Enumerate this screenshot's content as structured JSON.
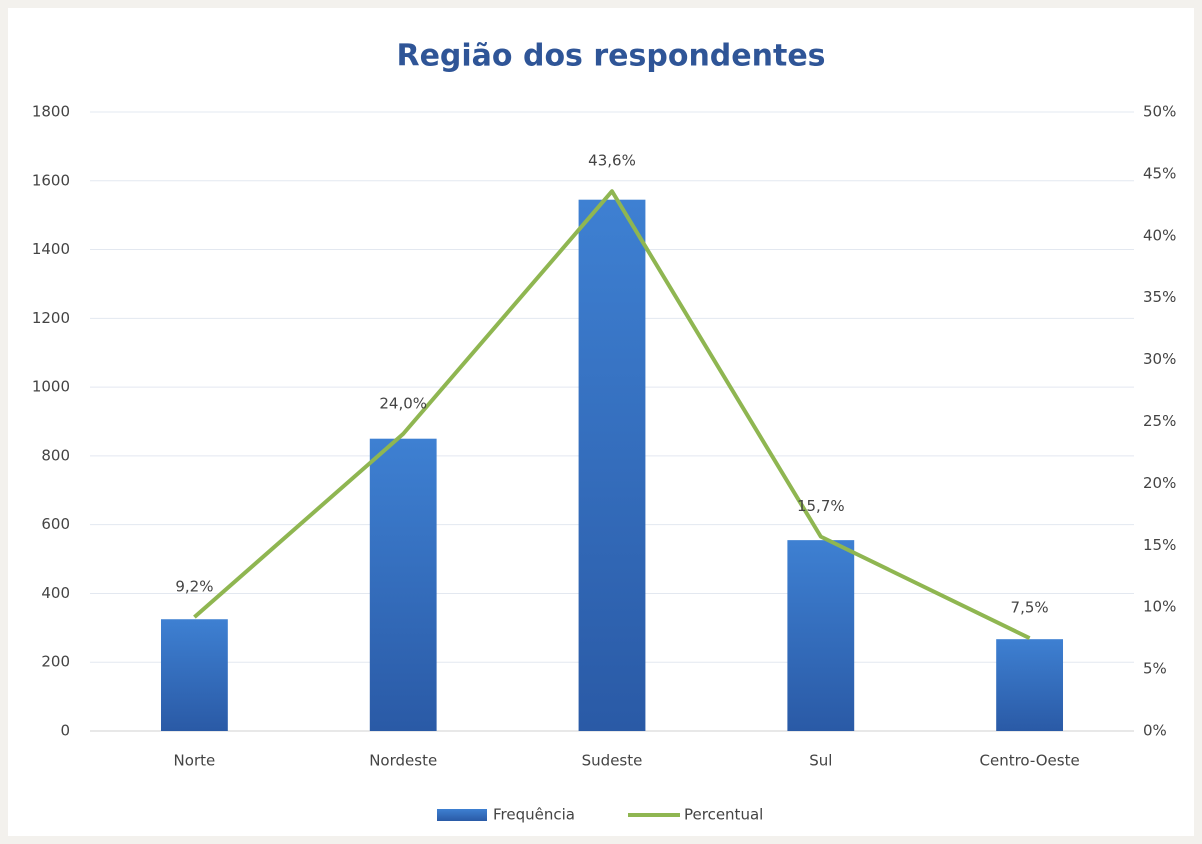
{
  "chart_data": {
    "type": "bar",
    "title": "Região dos respondentes",
    "categories": [
      "Norte",
      "Nordeste",
      "Sudeste",
      "Sul",
      "Centro-Oeste"
    ],
    "series": [
      {
        "name": "Frequência",
        "type": "bar",
        "color": "#3572c6",
        "values": [
          325,
          850,
          1545,
          555,
          267
        ]
      },
      {
        "name": "Percentual",
        "type": "line",
        "axis": "y2",
        "color": "#8fb651",
        "values": [
          9.2,
          24.0,
          43.6,
          15.7,
          7.5
        ],
        "value_labels": [
          "9,2%",
          "24,0%",
          "43,6%",
          "15,7%",
          "7,5%"
        ]
      }
    ],
    "ylim": [
      0,
      1800
    ],
    "yticks": [
      0,
      200,
      400,
      600,
      800,
      1000,
      1200,
      1400,
      1600,
      1800
    ],
    "y2lim": [
      0,
      50
    ],
    "y2ticks": [
      {
        "value": 0,
        "label": "0%"
      },
      {
        "value": 5,
        "label": "5%"
      },
      {
        "value": 10,
        "label": "10%"
      },
      {
        "value": 15,
        "label": "15%"
      },
      {
        "value": 20,
        "label": "20%"
      },
      {
        "value": 25,
        "label": "25%"
      },
      {
        "value": 30,
        "label": "30%"
      },
      {
        "value": 35,
        "label": "35%"
      },
      {
        "value": 40,
        "label": "40%"
      },
      {
        "value": 45,
        "label": "45%"
      },
      {
        "value": 50,
        "label": "50%"
      }
    ],
    "grid": true,
    "legend": "bottom"
  }
}
